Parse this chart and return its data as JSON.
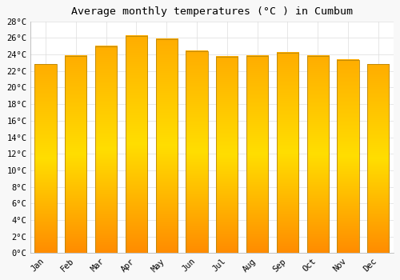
{
  "title": "Average monthly temperatures (°C ) in Cumbum",
  "months": [
    "Jan",
    "Feb",
    "Mar",
    "Apr",
    "May",
    "Jun",
    "Jul",
    "Aug",
    "Sep",
    "Oct",
    "Nov",
    "Dec"
  ],
  "values": [
    22.8,
    23.8,
    25.0,
    26.2,
    25.8,
    24.4,
    23.7,
    23.8,
    24.2,
    23.8,
    23.3,
    22.8
  ],
  "bar_color_top": "#FFB300",
  "bar_color_mid": "#FFD040",
  "bar_color_bottom": "#FF8C00",
  "bar_edge_color": "#B8860B",
  "ylim": [
    0,
    28
  ],
  "yticks": [
    0,
    2,
    4,
    6,
    8,
    10,
    12,
    14,
    16,
    18,
    20,
    22,
    24,
    26,
    28
  ],
  "bg_color": "#FFFFFF",
  "fig_bg_color": "#F8F8F8",
  "grid_color": "#DDDDDD",
  "title_fontsize": 9.5,
  "tick_fontsize": 7.5,
  "font_family": "monospace"
}
